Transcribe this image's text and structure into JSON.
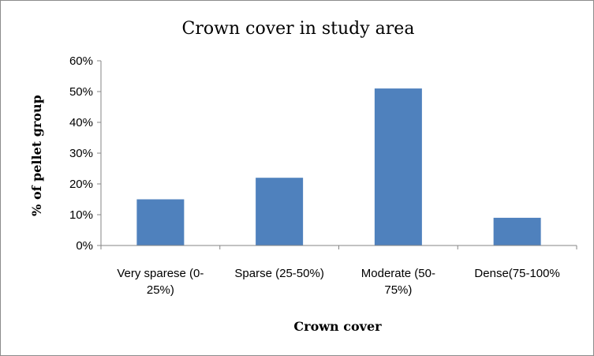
{
  "chart_data": {
    "type": "bar",
    "title": "Crown cover in study area",
    "xlabel": "Crown cover",
    "ylabel": "% of pellet group",
    "categories": [
      [
        "Very sparese (0-",
        "25%)"
      ],
      [
        "Sparse (25-50%)"
      ],
      [
        "Moderate (50-",
        "75%)"
      ],
      [
        "Dense(75-100%"
      ]
    ],
    "values": [
      0.15,
      0.22,
      0.51,
      0.09
    ],
    "ylim": [
      0,
      0.6
    ],
    "yticks": [
      "0%",
      "10%",
      "20%",
      "30%",
      "40%",
      "50%",
      "60%"
    ],
    "bar_color": "#4f81bd",
    "axis_color": "#868686",
    "grid": false,
    "legend": "none"
  }
}
